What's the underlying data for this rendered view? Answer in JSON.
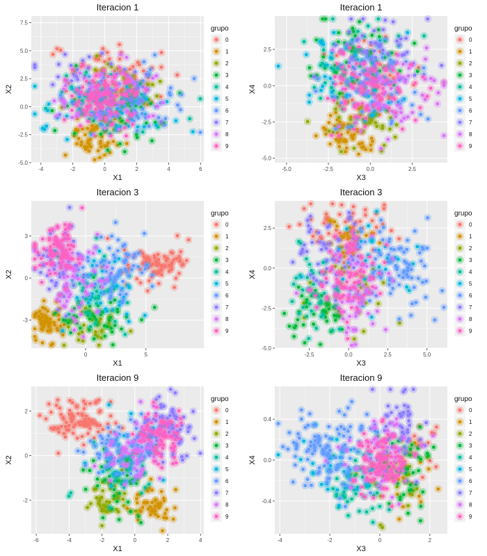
{
  "legend_title": "grupo",
  "legend_labels": [
    "0",
    "1",
    "2",
    "3",
    "4",
    "5",
    "6",
    "7",
    "8",
    "9"
  ],
  "colors": [
    "#F8766D",
    "#D39200",
    "#93AA00",
    "#00BA38",
    "#00C19F",
    "#00B9E3",
    "#619CFF",
    "#8B7DFF",
    "#DB72FB",
    "#FF61C3"
  ],
  "panel_background": "#EBEBEB",
  "grid_color": "#FFFFFF",
  "chart_data": [
    {
      "type": "scatter",
      "title": "Iteracion 1",
      "xlabel": "X1",
      "ylabel": "X2",
      "xlim": [
        -4.6,
        6.2
      ],
      "ylim": [
        -5.0,
        8.1
      ],
      "xticks": [
        -4,
        -2,
        0,
        2,
        4,
        6
      ],
      "yticks": [
        -5.0,
        -2.5,
        0.0,
        2.5,
        5.0,
        7.5
      ],
      "ytick_labels": [
        "-5.0",
        "-2.5",
        "0.0",
        "2.5",
        "5.0",
        "7.5"
      ],
      "series": [
        {
          "name": "0",
          "center": [
            0.5,
            2.5
          ],
          "spread": [
            1.5,
            1.8
          ],
          "n": 70
        },
        {
          "name": "1",
          "center": [
            -0.5,
            -2.5
          ],
          "spread": [
            0.8,
            1.0
          ],
          "n": 55
        },
        {
          "name": "2",
          "center": [
            0.3,
            1.0
          ],
          "spread": [
            1.5,
            1.5
          ],
          "n": 40
        },
        {
          "name": "3",
          "center": [
            0.8,
            -0.5
          ],
          "spread": [
            1.8,
            1.4
          ],
          "n": 60
        },
        {
          "name": "4",
          "center": [
            0.5,
            0.5
          ],
          "spread": [
            1.8,
            1.6
          ],
          "n": 45
        },
        {
          "name": "5",
          "center": [
            0.0,
            0.0
          ],
          "spread": [
            2.0,
            1.6
          ],
          "n": 55
        },
        {
          "name": "6",
          "center": [
            1.5,
            0.5
          ],
          "spread": [
            1.8,
            1.6
          ],
          "n": 60
        },
        {
          "name": "7",
          "center": [
            -0.5,
            1.5
          ],
          "spread": [
            1.8,
            1.6
          ],
          "n": 60
        },
        {
          "name": "8",
          "center": [
            0.0,
            1.0
          ],
          "spread": [
            1.5,
            1.5
          ],
          "n": 60
        },
        {
          "name": "9",
          "center": [
            0.0,
            0.8
          ],
          "spread": [
            1.2,
            1.2
          ],
          "n": 90
        }
      ]
    },
    {
      "type": "scatter",
      "title": "Iteracion 1",
      "xlabel": "X3",
      "ylabel": "X4",
      "xlim": [
        -5.7,
        4.6
      ],
      "ylim": [
        -5.3,
        4.8
      ],
      "xticks": [
        -5.0,
        -2.5,
        0.0,
        2.5
      ],
      "xtick_labels": [
        "-5.0",
        "-2.5",
        "0.0",
        "2.5"
      ],
      "yticks": [
        -5.0,
        -2.5,
        0.0,
        2.5
      ],
      "ytick_labels": [
        "-5.0",
        "-2.5",
        "0.0",
        "2.5"
      ],
      "series": [
        {
          "name": "0",
          "center": [
            0.3,
            0.5
          ],
          "spread": [
            1.4,
            1.5
          ],
          "n": 55
        },
        {
          "name": "1",
          "center": [
            -1.3,
            -3.3
          ],
          "spread": [
            0.8,
            0.8
          ],
          "n": 55
        },
        {
          "name": "2",
          "center": [
            -0.5,
            -2.5
          ],
          "spread": [
            1.5,
            1.0
          ],
          "n": 40
        },
        {
          "name": "3",
          "center": [
            -1.0,
            1.5
          ],
          "spread": [
            1.8,
            1.6
          ],
          "n": 60
        },
        {
          "name": "4",
          "center": [
            -1.5,
            2.0
          ],
          "spread": [
            1.6,
            1.5
          ],
          "n": 45
        },
        {
          "name": "5",
          "center": [
            -1.0,
            0.5
          ],
          "spread": [
            1.8,
            1.8
          ],
          "n": 50
        },
        {
          "name": "6",
          "center": [
            0.5,
            0.0
          ],
          "spread": [
            1.5,
            1.6
          ],
          "n": 60
        },
        {
          "name": "7",
          "center": [
            0.0,
            2.0
          ],
          "spread": [
            1.6,
            1.5
          ],
          "n": 60
        },
        {
          "name": "8",
          "center": [
            1.0,
            -0.5
          ],
          "spread": [
            1.5,
            1.5
          ],
          "n": 65
        },
        {
          "name": "9",
          "center": [
            0.0,
            0.0
          ],
          "spread": [
            1.4,
            1.5
          ],
          "n": 80
        }
      ]
    },
    {
      "type": "scatter",
      "title": "Iteracion 3",
      "xlabel": "X1",
      "ylabel": "X2",
      "xlim": [
        -4.5,
        9.8
      ],
      "ylim": [
        -5.0,
        5.5
      ],
      "xticks": [
        0,
        5
      ],
      "yticks": [
        -3,
        0,
        3
      ],
      "series": [
        {
          "name": "0",
          "center": [
            6.0,
            1.0
          ],
          "spread": [
            1.6,
            0.7
          ],
          "n": 80
        },
        {
          "name": "1",
          "center": [
            -3.0,
            -3.2
          ],
          "spread": [
            0.6,
            0.7
          ],
          "n": 55
        },
        {
          "name": "2",
          "center": [
            0.5,
            -3.5
          ],
          "spread": [
            1.2,
            0.8
          ],
          "n": 35
        },
        {
          "name": "3",
          "center": [
            1.0,
            -2.5
          ],
          "spread": [
            1.5,
            1.0
          ],
          "n": 45
        },
        {
          "name": "4",
          "center": [
            0.5,
            -1.0
          ],
          "spread": [
            1.5,
            1.5
          ],
          "n": 35
        },
        {
          "name": "5",
          "center": [
            1.5,
            -1.0
          ],
          "spread": [
            1.5,
            1.5
          ],
          "n": 40
        },
        {
          "name": "6",
          "center": [
            2.5,
            0.5
          ],
          "spread": [
            1.5,
            1.4
          ],
          "n": 70
        },
        {
          "name": "7",
          "center": [
            -2.0,
            1.0
          ],
          "spread": [
            1.4,
            1.5
          ],
          "n": 55
        },
        {
          "name": "8",
          "center": [
            -0.5,
            0.0
          ],
          "spread": [
            1.4,
            1.5
          ],
          "n": 60
        },
        {
          "name": "9",
          "center": [
            -2.0,
            2.0
          ],
          "spread": [
            1.0,
            1.0
          ],
          "n": 80
        }
      ]
    },
    {
      "type": "scatter",
      "title": "Iteracion 3",
      "xlabel": "X3",
      "ylabel": "X4",
      "xlim": [
        -4.7,
        6.3
      ],
      "ylim": [
        -5.0,
        4.2
      ],
      "xticks": [
        -2.5,
        0.0,
        2.5,
        5.0
      ],
      "xtick_labels": [
        "-2.5",
        "0.0",
        "2.5",
        "5.0"
      ],
      "yticks": [
        -5.0,
        -2.5,
        0.0,
        2.5
      ],
      "ytick_labels": [
        "-5.0",
        "-2.5",
        "0.0",
        "2.5"
      ],
      "series": [
        {
          "name": "0",
          "center": [
            -0.5,
            2.5
          ],
          "spread": [
            1.5,
            0.9
          ],
          "n": 60
        },
        {
          "name": "1",
          "center": [
            0.0,
            2.0
          ],
          "spread": [
            0.8,
            0.8
          ],
          "n": 20
        },
        {
          "name": "2",
          "center": [
            0.0,
            -1.5
          ],
          "spread": [
            1.5,
            1.5
          ],
          "n": 30
        },
        {
          "name": "3",
          "center": [
            -2.0,
            -2.5
          ],
          "spread": [
            1.2,
            1.0
          ],
          "n": 45
        },
        {
          "name": "4",
          "center": [
            -2.0,
            -1.5
          ],
          "spread": [
            1.2,
            1.2
          ],
          "n": 40
        },
        {
          "name": "5",
          "center": [
            1.0,
            0.0
          ],
          "spread": [
            1.5,
            1.5
          ],
          "n": 35
        },
        {
          "name": "6",
          "center": [
            3.0,
            0.0
          ],
          "spread": [
            1.4,
            1.5
          ],
          "n": 80
        },
        {
          "name": "7",
          "center": [
            -1.0,
            1.0
          ],
          "spread": [
            1.2,
            1.2
          ],
          "n": 60
        },
        {
          "name": "8",
          "center": [
            0.0,
            -1.5
          ],
          "spread": [
            1.3,
            1.3
          ],
          "n": 55
        },
        {
          "name": "9",
          "center": [
            0.0,
            -0.5
          ],
          "spread": [
            1.0,
            1.2
          ],
          "n": 80
        }
      ]
    },
    {
      "type": "scatter",
      "title": "Iteracion 9",
      "xlabel": "X1",
      "ylabel": "X2",
      "xlim": [
        -6.3,
        4.2
      ],
      "ylim": [
        -3.5,
        3.1
      ],
      "xticks": [
        -6,
        -4,
        -2,
        0,
        2,
        4
      ],
      "yticks": [
        -2,
        0,
        2
      ],
      "series": [
        {
          "name": "0",
          "center": [
            -3.5,
            1.6
          ],
          "spread": [
            1.1,
            0.5
          ],
          "n": 90
        },
        {
          "name": "1",
          "center": [
            1.0,
            -2.2
          ],
          "spread": [
            0.6,
            0.5
          ],
          "n": 50
        },
        {
          "name": "2",
          "center": [
            -1.5,
            -2.0
          ],
          "spread": [
            0.8,
            0.6
          ],
          "n": 40
        },
        {
          "name": "3",
          "center": [
            -1.0,
            -1.0
          ],
          "spread": [
            1.0,
            0.8
          ],
          "n": 45
        },
        {
          "name": "4",
          "center": [
            -0.5,
            -0.5
          ],
          "spread": [
            1.2,
            0.8
          ],
          "n": 35
        },
        {
          "name": "5",
          "center": [
            -0.5,
            0.0
          ],
          "spread": [
            1.2,
            0.8
          ],
          "n": 35
        },
        {
          "name": "6",
          "center": [
            -1.0,
            0.3
          ],
          "spread": [
            1.1,
            0.7
          ],
          "n": 70
        },
        {
          "name": "7",
          "center": [
            2.0,
            1.2
          ],
          "spread": [
            0.8,
            0.7
          ],
          "n": 70
        },
        {
          "name": "8",
          "center": [
            0.0,
            0.0
          ],
          "spread": [
            1.0,
            0.8
          ],
          "n": 60
        },
        {
          "name": "9",
          "center": [
            1.5,
            0.8
          ],
          "spread": [
            0.7,
            0.6
          ],
          "n": 70
        }
      ]
    },
    {
      "type": "scatter",
      "title": "Iteracion 9",
      "xlabel": "X3",
      "ylabel": "X4",
      "xlim": [
        -4.2,
        2.7
      ],
      "ylim": [
        -0.72,
        0.72
      ],
      "xticks": [
        -4,
        -2,
        0,
        2
      ],
      "yticks": [
        -0.4,
        0.0,
        0.4
      ],
      "ytick_labels": [
        "-0.4",
        "0.0",
        "0.4"
      ],
      "series": [
        {
          "name": "0",
          "center": [
            1.5,
            0.0
          ],
          "spread": [
            0.7,
            0.2
          ],
          "n": 30
        },
        {
          "name": "1",
          "center": [
            1.0,
            -0.1
          ],
          "spread": [
            0.6,
            0.2
          ],
          "n": 20
        },
        {
          "name": "2",
          "center": [
            0.5,
            -0.2
          ],
          "spread": [
            0.7,
            0.2
          ],
          "n": 25
        },
        {
          "name": "3",
          "center": [
            1.0,
            -0.1
          ],
          "spread": [
            0.6,
            0.2
          ],
          "n": 45
        },
        {
          "name": "4",
          "center": [
            -1.0,
            -0.3
          ],
          "spread": [
            0.6,
            0.2
          ],
          "n": 40
        },
        {
          "name": "5",
          "center": [
            -1.5,
            0.0
          ],
          "spread": [
            1.0,
            0.2
          ],
          "n": 40
        },
        {
          "name": "6",
          "center": [
            -2.0,
            0.1
          ],
          "spread": [
            0.9,
            0.18
          ],
          "n": 110
        },
        {
          "name": "7",
          "center": [
            0.8,
            0.3
          ],
          "spread": [
            0.5,
            0.2
          ],
          "n": 50
        },
        {
          "name": "8",
          "center": [
            0.0,
            0.0
          ],
          "spread": [
            0.8,
            0.2
          ],
          "n": 55
        },
        {
          "name": "9",
          "center": [
            0.0,
            0.0
          ],
          "spread": [
            0.5,
            0.15
          ],
          "n": 90
        }
      ]
    }
  ]
}
